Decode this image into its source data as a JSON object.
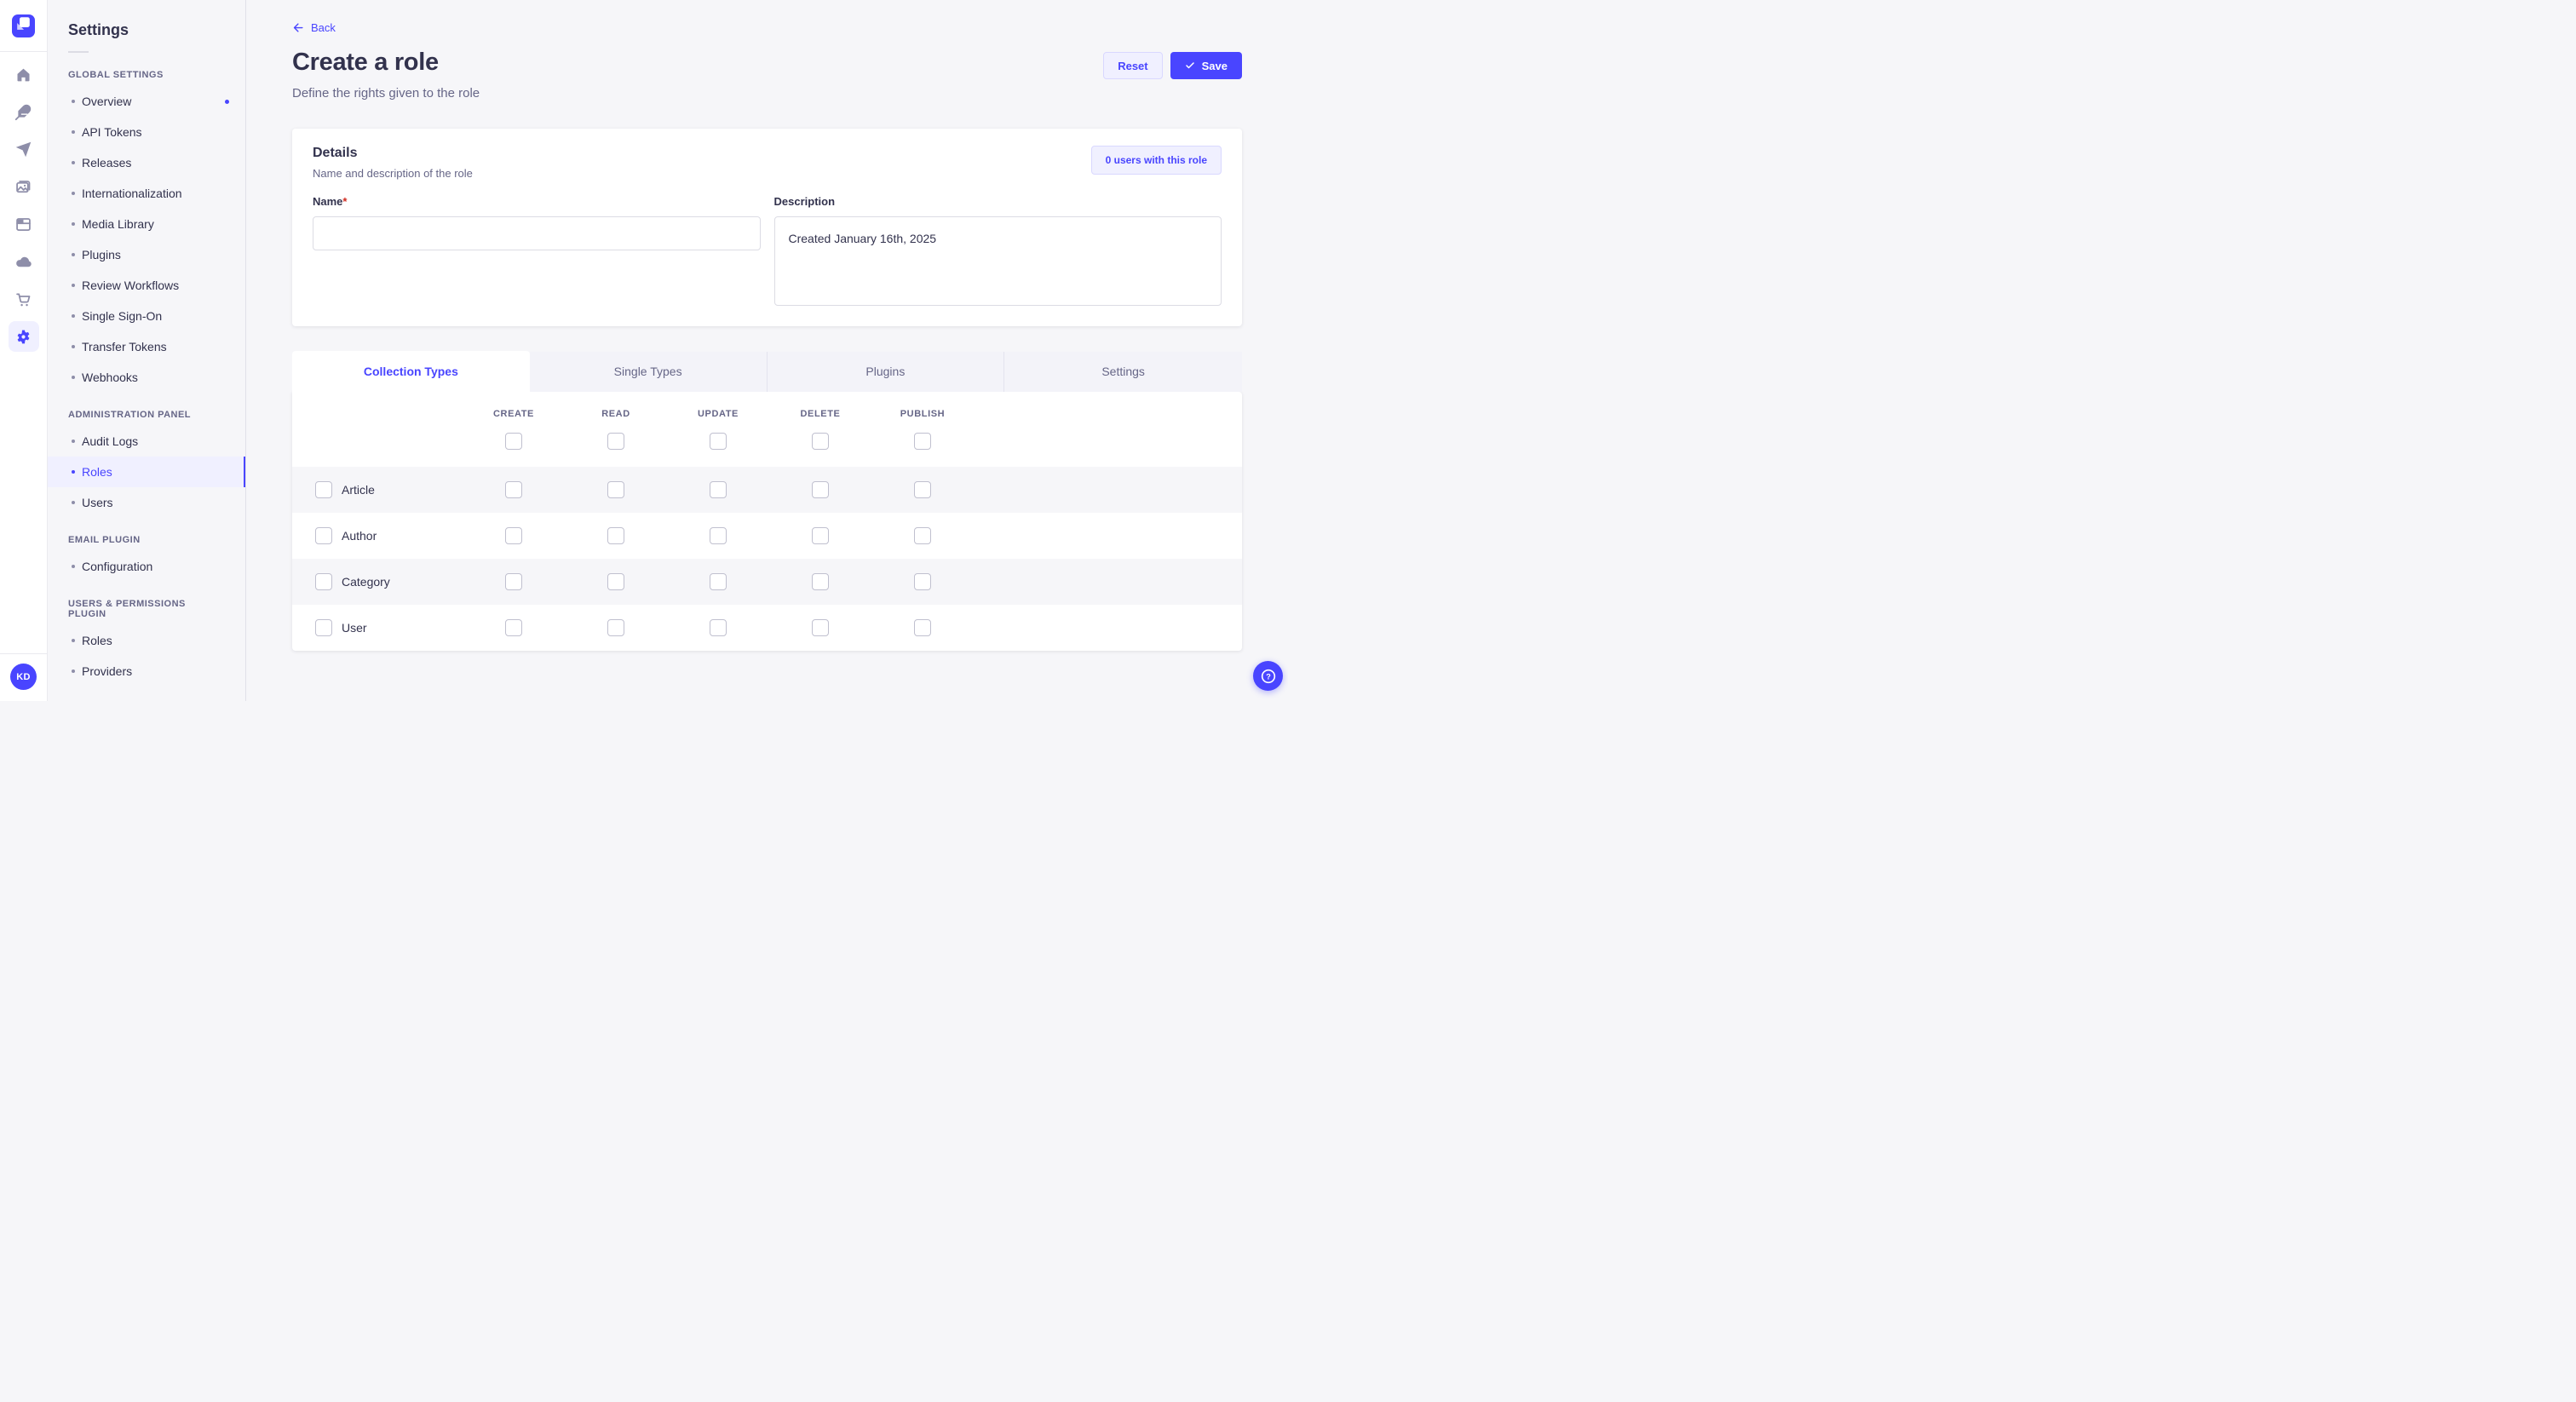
{
  "colors": {
    "accent": "#4945ff",
    "accent_light": "#f0f0ff",
    "accent_border": "#d9d8ff",
    "danger": "#d02b20",
    "text_dark": "#32324d",
    "text_gray": "#666687",
    "page_bg": "#f6f6f9"
  },
  "iconbar": {
    "logo_icon": "strapi-logo",
    "nav_icons": [
      {
        "name": "home",
        "active": false
      },
      {
        "name": "feather",
        "active": false
      },
      {
        "name": "paper-plane",
        "active": false
      },
      {
        "name": "media",
        "active": false
      },
      {
        "name": "layout",
        "active": false
      },
      {
        "name": "cloud",
        "active": false
      },
      {
        "name": "cart",
        "active": false
      },
      {
        "name": "settings",
        "active": true
      }
    ],
    "avatar_initials": "KD"
  },
  "sidebar": {
    "title": "Settings",
    "sections": [
      {
        "label": "GLOBAL SETTINGS",
        "items": [
          {
            "label": "Overview",
            "notification": true
          },
          {
            "label": "API Tokens"
          },
          {
            "label": "Releases"
          },
          {
            "label": "Internationalization"
          },
          {
            "label": "Media Library"
          },
          {
            "label": "Plugins"
          },
          {
            "label": "Review Workflows"
          },
          {
            "label": "Single Sign-On"
          },
          {
            "label": "Transfer Tokens"
          },
          {
            "label": "Webhooks"
          }
        ]
      },
      {
        "label": "ADMINISTRATION PANEL",
        "items": [
          {
            "label": "Audit Logs"
          },
          {
            "label": "Roles",
            "active": true
          },
          {
            "label": "Users"
          }
        ]
      },
      {
        "label": "EMAIL PLUGIN",
        "items": [
          {
            "label": "Configuration"
          }
        ]
      },
      {
        "label": "USERS & PERMISSIONS PLUGIN",
        "items": [
          {
            "label": "Roles"
          },
          {
            "label": "Providers"
          }
        ]
      }
    ]
  },
  "header": {
    "back_label": "Back",
    "title": "Create a role",
    "subtitle": "Define the rights given to the role",
    "reset_label": "Reset",
    "save_label": "Save"
  },
  "details": {
    "title": "Details",
    "subtitle": "Name and description of the role",
    "badge": "0 users with this role",
    "name_label": "Name",
    "name_required": "*",
    "name_value": "",
    "description_label": "Description",
    "description_value": "Created January 16th, 2025"
  },
  "permissions": {
    "tabs": [
      {
        "label": "Collection Types",
        "active": true
      },
      {
        "label": "Single Types",
        "active": false
      },
      {
        "label": "Plugins",
        "active": false
      },
      {
        "label": "Settings",
        "active": false
      }
    ],
    "columns": [
      "CREATE",
      "READ",
      "UPDATE",
      "DELETE",
      "PUBLISH"
    ],
    "header_checks": [
      false,
      false,
      false,
      false,
      false
    ],
    "rows": [
      {
        "label": "Article",
        "row_checked": false,
        "checks": [
          false,
          false,
          false,
          false,
          false
        ]
      },
      {
        "label": "Author",
        "row_checked": false,
        "checks": [
          false,
          false,
          false,
          false,
          false
        ]
      },
      {
        "label": "Category",
        "row_checked": false,
        "checks": [
          false,
          false,
          false,
          false,
          false
        ]
      },
      {
        "label": "User",
        "row_checked": false,
        "checks": [
          false,
          false,
          false,
          false,
          false
        ]
      }
    ]
  },
  "help": {
    "icon": "question-mark"
  }
}
